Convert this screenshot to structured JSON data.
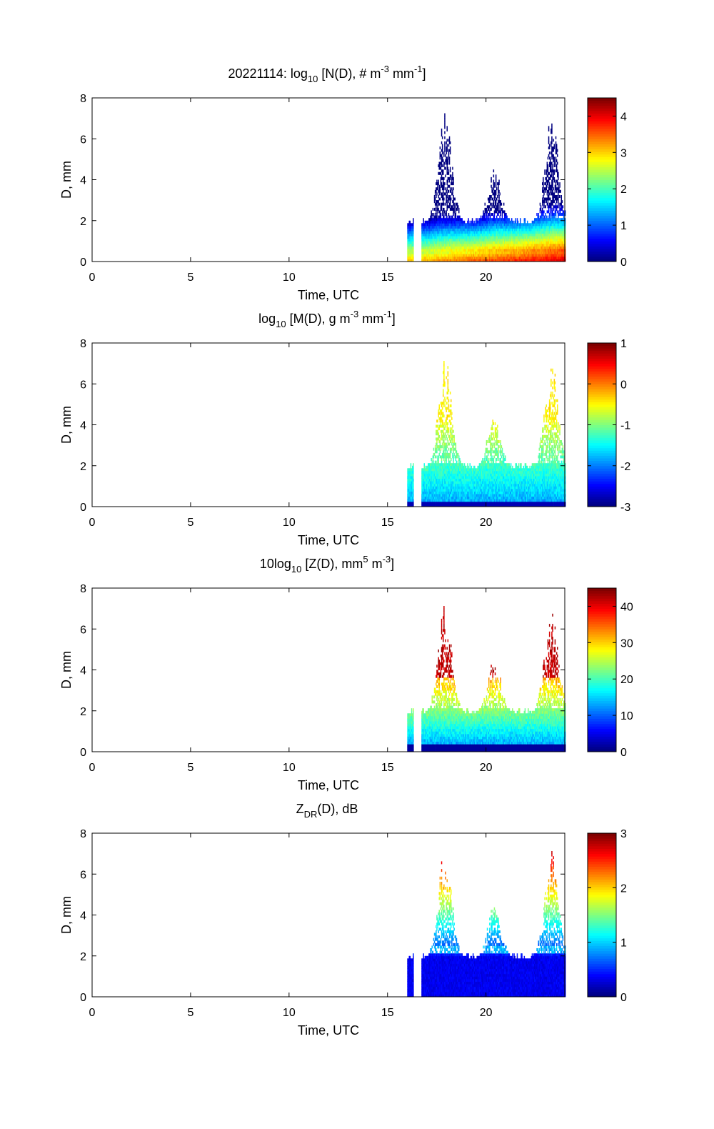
{
  "chart_data": [
    {
      "type": "heatmap",
      "title_main": "20221114: log",
      "title_sub": "10",
      "title_rest1": " [N(D), # m",
      "title_sup1": "-3",
      "title_rest2": " mm",
      "title_sup2": "-1",
      "title_end": "]",
      "xlabel": "Time, UTC",
      "ylabel": "D, mm",
      "xlim": [
        0,
        24
      ],
      "ylim": [
        0,
        8
      ],
      "xticks": [
        0,
        5,
        10,
        15,
        20
      ],
      "yticks": [
        0,
        2,
        4,
        6,
        8
      ],
      "colorbar": {
        "range": [
          0,
          4.5
        ],
        "ticks": [
          0,
          1,
          2,
          3,
          4
        ]
      },
      "profile": "n"
    },
    {
      "type": "heatmap",
      "title_main": "log",
      "title_sub": "10",
      "title_rest1": " [M(D), g m",
      "title_sup1": "-3",
      "title_rest2": " mm",
      "title_sup2": "-1",
      "title_end": "]",
      "xlabel": "Time, UTC",
      "ylabel": "D, mm",
      "xlim": [
        0,
        24
      ],
      "ylim": [
        0,
        8
      ],
      "xticks": [
        0,
        5,
        10,
        15,
        20
      ],
      "yticks": [
        0,
        2,
        4,
        6,
        8
      ],
      "colorbar": {
        "range": [
          -3,
          1
        ],
        "ticks": [
          -3,
          -2,
          -1,
          0,
          1
        ]
      },
      "profile": "m"
    },
    {
      "type": "heatmap",
      "title_main": "10log",
      "title_sub": "10",
      "title_rest1": " [Z(D),  mm",
      "title_sup1": "5",
      "title_rest2": " m",
      "title_sup2": "-3",
      "title_end": "]",
      "xlabel": "Time, UTC",
      "ylabel": "D, mm",
      "xlim": [
        0,
        24
      ],
      "ylim": [
        0,
        8
      ],
      "xticks": [
        0,
        5,
        10,
        15,
        20
      ],
      "yticks": [
        0,
        2,
        4,
        6,
        8
      ],
      "colorbar": {
        "range": [
          0,
          45
        ],
        "ticks": [
          0,
          10,
          20,
          30,
          40
        ]
      },
      "profile": "z"
    },
    {
      "type": "heatmap",
      "title_main": "Z",
      "title_sub": "DR",
      "title_rest1": "(D), dB",
      "title_sup1": "",
      "title_rest2": "",
      "title_sup2": "",
      "title_end": "",
      "xlabel": "Time, UTC",
      "ylabel": "D, mm",
      "xlim": [
        0,
        24
      ],
      "ylim": [
        0,
        8
      ],
      "xticks": [
        0,
        5,
        10,
        15,
        20
      ],
      "yticks": [
        0,
        2,
        4,
        6,
        8
      ],
      "colorbar": {
        "range": [
          0,
          3
        ],
        "ticks": [
          0,
          1,
          2,
          3
        ]
      },
      "profile": "zdr"
    }
  ],
  "echo": {
    "start_time": 16.0,
    "end_time": 24.0,
    "bursts": [
      {
        "t": 17.9,
        "peak_d": 7.3
      },
      {
        "t": 20.4,
        "peak_d": 4.5
      },
      {
        "t": 23.3,
        "peak_d": 7.1
      }
    ]
  }
}
